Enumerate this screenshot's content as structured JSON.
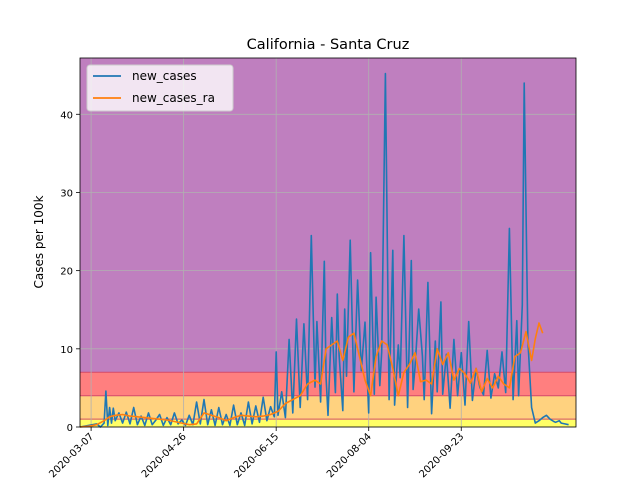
{
  "chart_data": {
    "type": "line",
    "title": "California - Santa Cruz",
    "xlabel": "",
    "ylabel": "Cases per 100k",
    "x_axis_kind": "date",
    "x_start": "2020-03-01",
    "x_end": "2020-11-24",
    "xtick_labels": [
      "2020-03-07",
      "2020-04-26",
      "2020-06-15",
      "2020-08-04",
      "2020-09-23"
    ],
    "ylim": [
      0,
      47.2
    ],
    "yticks": [
      0,
      10,
      20,
      30,
      40
    ],
    "grid": true,
    "legend_position": "upper-left",
    "bands": [
      {
        "from": 0,
        "to": 1,
        "color": "#ffff66"
      },
      {
        "from": 1,
        "to": 4,
        "color": "#ffd27f"
      },
      {
        "from": 4,
        "to": 7,
        "color": "#ff7f7f"
      },
      {
        "from": 7,
        "to": 47.2,
        "color": "#bf7fbf"
      }
    ],
    "series": [
      {
        "name": "new_cases",
        "color": "#1f77b4",
        "dates": [
          "2020-03-01",
          "2020-03-10",
          "2020-03-12",
          "2020-03-14",
          "2020-03-15",
          "2020-03-16",
          "2020-03-17",
          "2020-03-18",
          "2020-03-19",
          "2020-03-20",
          "2020-03-22",
          "2020-03-24",
          "2020-03-26",
          "2020-03-28",
          "2020-03-30",
          "2020-04-01",
          "2020-04-03",
          "2020-04-05",
          "2020-04-07",
          "2020-04-09",
          "2020-04-11",
          "2020-04-13",
          "2020-04-15",
          "2020-04-17",
          "2020-04-19",
          "2020-04-21",
          "2020-04-23",
          "2020-04-25",
          "2020-04-27",
          "2020-04-29",
          "2020-05-01",
          "2020-05-03",
          "2020-05-05",
          "2020-05-07",
          "2020-05-09",
          "2020-05-11",
          "2020-05-13",
          "2020-05-15",
          "2020-05-17",
          "2020-05-19",
          "2020-05-21",
          "2020-05-23",
          "2020-05-25",
          "2020-05-27",
          "2020-05-29",
          "2020-05-31",
          "2020-06-02",
          "2020-06-04",
          "2020-06-06",
          "2020-06-08",
          "2020-06-10",
          "2020-06-12",
          "2020-06-14",
          "2020-06-15",
          "2020-06-16",
          "2020-06-18",
          "2020-06-20",
          "2020-06-22",
          "2020-06-24",
          "2020-06-26",
          "2020-06-28",
          "2020-06-30",
          "2020-07-02",
          "2020-07-04",
          "2020-07-06",
          "2020-07-07",
          "2020-07-09",
          "2020-07-11",
          "2020-07-12",
          "2020-07-13",
          "2020-07-15",
          "2020-07-17",
          "2020-07-18",
          "2020-07-19",
          "2020-07-21",
          "2020-07-22",
          "2020-07-23",
          "2020-07-25",
          "2020-07-27",
          "2020-07-29",
          "2020-07-31",
          "2020-08-02",
          "2020-08-04",
          "2020-08-05",
          "2020-08-07",
          "2020-08-08",
          "2020-08-10",
          "2020-08-11",
          "2020-08-13",
          "2020-08-15",
          "2020-08-17",
          "2020-08-18",
          "2020-08-20",
          "2020-08-21",
          "2020-08-23",
          "2020-08-25",
          "2020-08-27",
          "2020-08-28",
          "2020-08-29",
          "2020-08-31",
          "2020-09-02",
          "2020-09-03",
          "2020-09-05",
          "2020-09-07",
          "2020-09-09",
          "2020-09-10",
          "2020-09-12",
          "2020-09-13",
          "2020-09-15",
          "2020-09-17",
          "2020-09-19",
          "2020-09-21",
          "2020-09-23",
          "2020-09-25",
          "2020-09-27",
          "2020-09-29",
          "2020-10-01",
          "2020-10-03",
          "2020-10-05",
          "2020-10-07",
          "2020-10-09",
          "2020-10-11",
          "2020-10-13",
          "2020-10-15",
          "2020-10-17",
          "2020-10-19",
          "2020-10-21",
          "2020-10-23",
          "2020-10-24",
          "2020-10-26",
          "2020-10-27",
          "2020-10-29",
          "2020-10-31",
          "2020-11-02",
          "2020-11-04",
          "2020-11-06",
          "2020-11-08",
          "2020-11-10",
          "2020-11-12",
          "2020-11-13",
          "2020-11-15",
          "2020-11-16",
          "2020-11-18",
          "2020-11-20"
        ],
        "values": [
          0,
          0.4,
          0,
          0.5,
          4.6,
          0.2,
          2.5,
          0.5,
          2.4,
          0.8,
          1.8,
          0.5,
          1.9,
          0.4,
          2.5,
          0.3,
          1.4,
          0.2,
          1.8,
          0.3,
          0.9,
          1.6,
          0.2,
          1.2,
          0.3,
          1.8,
          0.4,
          0.9,
          0.2,
          1.5,
          0.3,
          3.2,
          0.4,
          3.5,
          0.3,
          2.2,
          0.2,
          2.5,
          0.3,
          1.6,
          0.2,
          2.8,
          0.3,
          1.8,
          0.2,
          3.2,
          0.4,
          2.7,
          0.6,
          3.8,
          0.8,
          2.6,
          1.3,
          9.6,
          1.5,
          4.5,
          1.2,
          11.2,
          1.8,
          13.8,
          2.5,
          13.2,
          3.5,
          24.5,
          5.1,
          13.5,
          3.2,
          21.2,
          6.3,
          1.5,
          14.0,
          4.4,
          17.0,
          9.2,
          2.1,
          15.1,
          6.5,
          23.9,
          4.5,
          18.8,
          7.2,
          13.4,
          1.8,
          22.3,
          4.2,
          16.6,
          5.3,
          9.6,
          45.2,
          3.5,
          22.6,
          2.8,
          10.5,
          6.3,
          24.5,
          2.5,
          21.3,
          4.8,
          7.6,
          15.1,
          9.1,
          3.5,
          18.5,
          1.7,
          11.0,
          4.5,
          16.0,
          4.2,
          9.3,
          2.4,
          11.2,
          4.0,
          9.5,
          2.8,
          13.5,
          3.4,
          7.5,
          5.1,
          4.1,
          9.8,
          3.7,
          6.8,
          5.0,
          9.6,
          4.4,
          25.4,
          3.5,
          13.6,
          4.0,
          15.6,
          44.0,
          11.0,
          2.5,
          0.5,
          0.8,
          1.2,
          1.5,
          1.0,
          0.7,
          0.6,
          0.8,
          0.5,
          0.4,
          0.3
        ]
      },
      {
        "name": "new_cases_ra",
        "color": "#ff7f0e",
        "dates": [
          "2020-03-01",
          "2020-03-06",
          "2020-03-10",
          "2020-03-14",
          "2020-03-17",
          "2020-03-20",
          "2020-03-24",
          "2020-03-28",
          "2020-04-01",
          "2020-04-05",
          "2020-04-09",
          "2020-04-13",
          "2020-04-17",
          "2020-04-21",
          "2020-04-25",
          "2020-04-29",
          "2020-05-03",
          "2020-05-07",
          "2020-05-11",
          "2020-05-15",
          "2020-05-19",
          "2020-05-23",
          "2020-05-27",
          "2020-05-31",
          "2020-06-04",
          "2020-06-08",
          "2020-06-12",
          "2020-06-16",
          "2020-06-20",
          "2020-06-24",
          "2020-06-28",
          "2020-07-02",
          "2020-07-06",
          "2020-07-09",
          "2020-07-12",
          "2020-07-15",
          "2020-07-18",
          "2020-07-21",
          "2020-07-24",
          "2020-07-27",
          "2020-07-30",
          "2020-08-02",
          "2020-08-05",
          "2020-08-08",
          "2020-08-11",
          "2020-08-14",
          "2020-08-17",
          "2020-08-20",
          "2020-08-23",
          "2020-08-26",
          "2020-08-29",
          "2020-09-01",
          "2020-09-04",
          "2020-09-07",
          "2020-09-10",
          "2020-09-13",
          "2020-09-16",
          "2020-09-19",
          "2020-09-22",
          "2020-09-25",
          "2020-09-28",
          "2020-10-01",
          "2020-10-04",
          "2020-10-07",
          "2020-10-10",
          "2020-10-13",
          "2020-10-16",
          "2020-10-19",
          "2020-10-22",
          "2020-10-25",
          "2020-10-28",
          "2020-10-31",
          "2020-11-02",
          "2020-11-04",
          "2020-11-06"
        ],
        "values": [
          0,
          0.1,
          0.3,
          0.8,
          1.3,
          1.5,
          1.6,
          1.4,
          1.3,
          1.2,
          1.1,
          1.0,
          0.9,
          0.7,
          0.5,
          0.3,
          0.4,
          1.8,
          1.5,
          1.2,
          0.8,
          1.2,
          1.5,
          1.4,
          1.3,
          1.4,
          1.6,
          2.0,
          3.0,
          3.5,
          4.0,
          5.5,
          6.0,
          5.5,
          10.0,
          10.5,
          11.0,
          8.5,
          11.5,
          12.0,
          9.0,
          6.0,
          4.0,
          9.0,
          11.0,
          10.5,
          7.5,
          4.0,
          7.0,
          8.0,
          9.5,
          5.8,
          6.0,
          5.5,
          10.0,
          8.0,
          9.5,
          6.0,
          7.5,
          6.8,
          5.6,
          7.5,
          4.5,
          6.2,
          5.0,
          6.5,
          5.5,
          5.0,
          9.0,
          9.5,
          12.2,
          8.5,
          11.3,
          13.3,
          12.0
        ]
      }
    ]
  }
}
